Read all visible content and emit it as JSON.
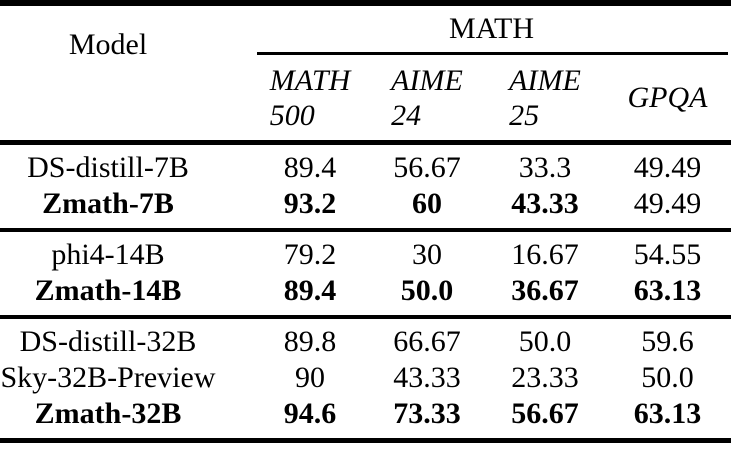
{
  "table": {
    "model_header": "Model",
    "group_header": "MATH",
    "sub_headers": [
      {
        "lines": [
          "MATH",
          "500"
        ]
      },
      {
        "lines": [
          "AIME",
          "24"
        ]
      },
      {
        "lines": [
          "AIME",
          "25"
        ]
      },
      {
        "lines": [
          "GPQA"
        ]
      }
    ],
    "sections": [
      {
        "rows": [
          {
            "model": "DS-distill-7B",
            "bold_model": false,
            "values": [
              "89.4",
              "56.67",
              "33.3",
              "49.49"
            ],
            "bold_values": [
              false,
              false,
              false,
              false
            ]
          },
          {
            "model": "Zmath-7B",
            "bold_model": true,
            "values": [
              "93.2",
              "60",
              "43.33",
              "49.49"
            ],
            "bold_values": [
              true,
              true,
              true,
              false
            ]
          }
        ]
      },
      {
        "rows": [
          {
            "model": "phi4-14B",
            "bold_model": false,
            "values": [
              "79.2",
              "30",
              "16.67",
              "54.55"
            ],
            "bold_values": [
              false,
              false,
              false,
              false
            ]
          },
          {
            "model": "Zmath-14B",
            "bold_model": true,
            "values": [
              "89.4",
              "50.0",
              "36.67",
              "63.13"
            ],
            "bold_values": [
              true,
              true,
              true,
              true
            ]
          }
        ]
      },
      {
        "rows": [
          {
            "model": "DS-distill-32B",
            "bold_model": false,
            "values": [
              "89.8",
              "66.67",
              "50.0",
              "59.6"
            ],
            "bold_values": [
              false,
              false,
              false,
              false
            ]
          },
          {
            "model": "Sky-32B-Preview",
            "bold_model": false,
            "values": [
              "90",
              "43.33",
              "23.33",
              "50.0"
            ],
            "bold_values": [
              false,
              false,
              false,
              false
            ]
          },
          {
            "model": "Zmath-32B",
            "bold_model": true,
            "values": [
              "94.6",
              "73.33",
              "56.67",
              "63.13"
            ],
            "bold_values": [
              true,
              true,
              true,
              true
            ]
          }
        ]
      }
    ],
    "rule_color": "#000000"
  }
}
